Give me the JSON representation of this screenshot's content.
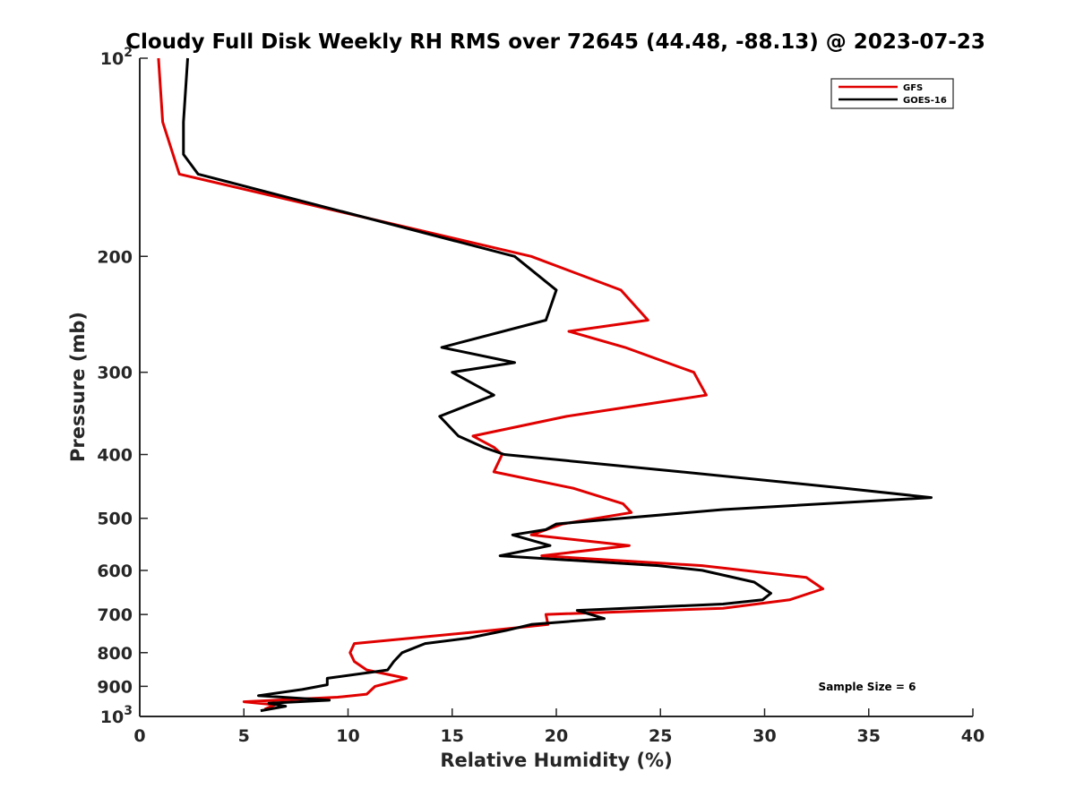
{
  "chart_data": {
    "type": "line",
    "title": "Cloudy Full Disk Weekly RH RMS over 72645 (44.48, -88.13) @ 2023-07-23",
    "xlabel": "Relative Humidity (%)",
    "ylabel": "Pressure (mb)",
    "xlim": [
      0,
      40
    ],
    "ylim": [
      100,
      1000
    ],
    "y_scale": "log",
    "y_reversed": true,
    "grid": false,
    "legend_position": "top-right",
    "x_ticks": [
      0,
      5,
      10,
      15,
      20,
      25,
      30,
      35,
      40
    ],
    "x_tick_labels": [
      "0",
      "5",
      "10",
      "15",
      "20",
      "25",
      "30",
      "35",
      "40"
    ],
    "y_ticks": [
      100,
      200,
      300,
      400,
      500,
      600,
      700,
      800,
      900,
      1000
    ],
    "y_tick_labels": [
      {
        "base": "10",
        "exp": "2"
      },
      {
        "base": "200",
        "exp": ""
      },
      {
        "base": "300",
        "exp": ""
      },
      {
        "base": "400",
        "exp": ""
      },
      {
        "base": "500",
        "exp": ""
      },
      {
        "base": "600",
        "exp": ""
      },
      {
        "base": "700",
        "exp": ""
      },
      {
        "base": "800",
        "exp": ""
      },
      {
        "base": "900",
        "exp": ""
      },
      {
        "base": "10",
        "exp": "3"
      }
    ],
    "annotation": "Sample Size = 6",
    "series": [
      {
        "name": "GFS",
        "color": "#e00000",
        "points": [
          [
            0.9,
            100
          ],
          [
            1.1,
            125
          ],
          [
            1.9,
            150
          ],
          [
            18.8,
            200
          ],
          [
            23.1,
            225
          ],
          [
            24.4,
            250
          ],
          [
            20.6,
            260
          ],
          [
            23.3,
            275
          ],
          [
            26.6,
            300
          ],
          [
            27.2,
            325
          ],
          [
            20.5,
            350
          ],
          [
            16.0,
            375
          ],
          [
            17.0,
            390
          ],
          [
            17.4,
            400
          ],
          [
            17.0,
            425
          ],
          [
            20.8,
            450
          ],
          [
            23.2,
            475
          ],
          [
            23.6,
            490
          ],
          [
            20.3,
            510
          ],
          [
            18.8,
            530
          ],
          [
            23.5,
            550
          ],
          [
            19.3,
            570
          ],
          [
            27.0,
            590
          ],
          [
            32.0,
            615
          ],
          [
            32.8,
            640
          ],
          [
            31.2,
            665
          ],
          [
            28.0,
            685
          ],
          [
            19.5,
            700
          ],
          [
            19.6,
            725
          ],
          [
            16.9,
            740
          ],
          [
            10.3,
            775
          ],
          [
            10.1,
            800
          ],
          [
            10.3,
            825
          ],
          [
            10.9,
            850
          ],
          [
            12.8,
            875
          ],
          [
            11.3,
            900
          ],
          [
            10.9,
            925
          ],
          [
            9.5,
            935
          ],
          [
            5.0,
            950
          ],
          [
            6.5,
            960
          ],
          [
            6.0,
            975
          ]
        ]
      },
      {
        "name": "GOES-16",
        "color": "#000000",
        "points": [
          [
            2.3,
            100
          ],
          [
            2.1,
            125
          ],
          [
            2.1,
            140
          ],
          [
            2.8,
            150
          ],
          [
            18.0,
            200
          ],
          [
            20.0,
            225
          ],
          [
            19.5,
            250
          ],
          [
            14.5,
            275
          ],
          [
            18.0,
            290
          ],
          [
            15.0,
            300
          ],
          [
            17.0,
            325
          ],
          [
            14.4,
            350
          ],
          [
            15.3,
            375
          ],
          [
            16.5,
            390
          ],
          [
            17.5,
            400
          ],
          [
            26.0,
            425
          ],
          [
            33.8,
            450
          ],
          [
            38.0,
            465
          ],
          [
            28.0,
            485
          ],
          [
            20.0,
            510
          ],
          [
            19.5,
            520
          ],
          [
            17.9,
            530
          ],
          [
            19.7,
            550
          ],
          [
            17.3,
            570
          ],
          [
            24.9,
            590
          ],
          [
            27.0,
            600
          ],
          [
            29.5,
            625
          ],
          [
            30.3,
            650
          ],
          [
            29.9,
            665
          ],
          [
            28.0,
            675
          ],
          [
            21.0,
            690
          ],
          [
            22.3,
            710
          ],
          [
            18.8,
            725
          ],
          [
            17.6,
            740
          ],
          [
            15.8,
            760
          ],
          [
            13.7,
            775
          ],
          [
            12.6,
            800
          ],
          [
            12.2,
            825
          ],
          [
            11.9,
            850
          ],
          [
            9.0,
            875
          ],
          [
            9.0,
            895
          ],
          [
            7.8,
            910
          ],
          [
            5.7,
            930
          ],
          [
            9.1,
            945
          ],
          [
            6.2,
            955
          ],
          [
            7.0,
            965
          ],
          [
            5.8,
            980
          ]
        ]
      }
    ]
  }
}
